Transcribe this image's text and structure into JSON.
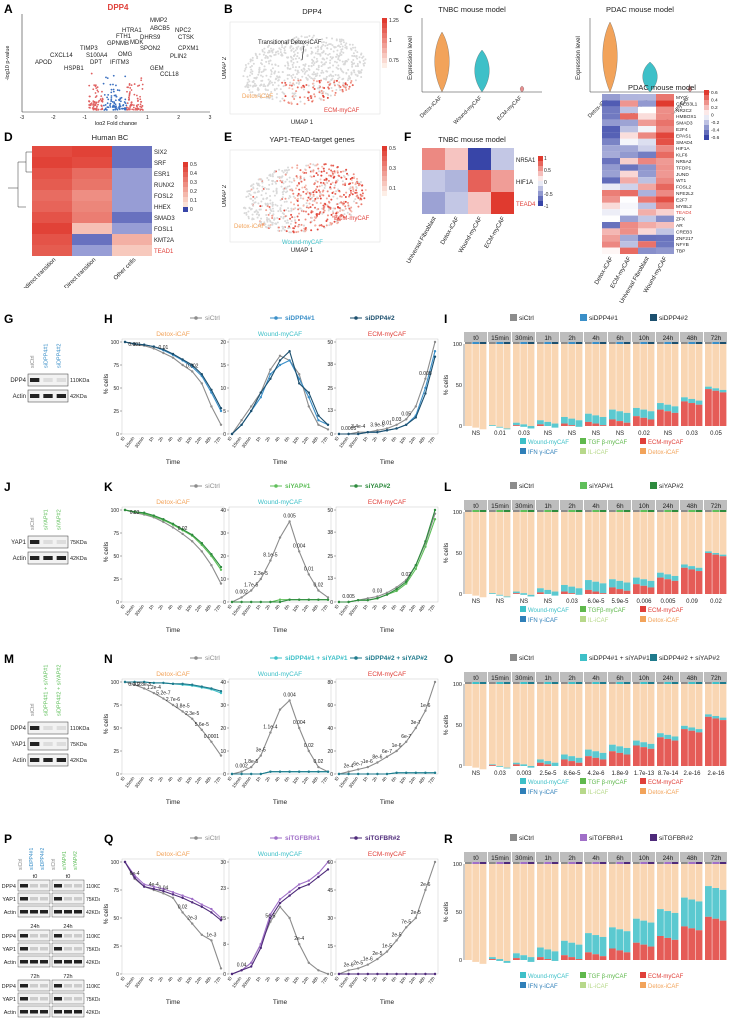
{
  "panel_letters": [
    "A",
    "B",
    "C",
    "D",
    "E",
    "F",
    "G",
    "H",
    "I",
    "J",
    "K",
    "L",
    "M",
    "N",
    "O",
    "P",
    "Q",
    "R"
  ],
  "colors": {
    "detox": "#f2a35a",
    "detox_fill": "#f9d6b3",
    "wound": "#3ec0c8",
    "ecm": "#e0403a",
    "tgfb": "#5fb84c",
    "il": "#b7d88a",
    "ifn": "#2f7fb8",
    "grey": "#8c8c8c",
    "siDPP4_1": "#3a8fc8",
    "siDPP4_2": "#1c4f6e",
    "siYAP1_1": "#5fbf5a",
    "siYAP1_2": "#2e8b3e",
    "siTGF_1": "#a06fc8",
    "siTGF_2": "#4e2a7a",
    "red_label": "#e0403a"
  },
  "A": {
    "title": "DPP4",
    "ylabel": "-log10 p-value",
    "xlabel": "log2 Fold change",
    "xticks": [
      "-3",
      "-2",
      "-1",
      "0",
      "1",
      "2",
      "3"
    ],
    "genes": [
      "MMP2",
      "ABCB5",
      "HTRA1",
      "NPC2",
      "FTH1",
      "DHRS9",
      "CTSK",
      "GPNMB",
      "MDK",
      "TIMP3",
      "SPON2",
      "CPXM1",
      "CXCL14",
      "S100A4",
      "OMG",
      "PLIN2",
      "APOD",
      "DPT",
      "IFITM3",
      "GEM",
      "HSPB1",
      "CCL18"
    ]
  },
  "B": {
    "title": "DPP4",
    "ylabel": "UMAP 2",
    "xlabel": "UMAP 1",
    "label_trans": "Transitional Detox-iCAF",
    "label_detox": "Detox-iCAF",
    "label_ecm": "ECM-myCAF",
    "scale": [
      "1.25",
      "1",
      "0.75"
    ]
  },
  "C": {
    "left_title": "TNBC mouse model",
    "right_title": "PDAC mouse model",
    "ylabel": "Expression level",
    "cats": [
      "Detox-iCAF",
      "Wound-myCAF",
      "ECM-myCAF"
    ]
  },
  "D": {
    "title": "Human BC",
    "rows": [
      "SIX2",
      "SRF",
      "ESR1",
      "RUNX2",
      "FOSL2",
      "HHEX",
      "SMAD3",
      "FOSL1",
      "KMT2A",
      "TEAD1"
    ],
    "cols": [
      "Indirect transition",
      "Direct transition",
      "Other cells"
    ],
    "scale": [
      "0.5",
      "0.4",
      "0.3",
      "0.2",
      "0.1",
      "0"
    ]
  },
  "E": {
    "title": "YAP1-TEAD-target genes",
    "ylabel": "UMAP 2",
    "xlabel": "UMAP 1",
    "label_detox": "Detox-iCAF",
    "label_wound": "Wound-myCAF",
    "label_ecm": "ECM-myCAF",
    "scale": [
      "0.5",
      "0.3",
      "0.1"
    ]
  },
  "F": {
    "left_title": "TNBC mouse model",
    "left_rows": [
      "NR5A1",
      "HIF1A",
      "TEAD4"
    ],
    "left_cols": [
      "Universal Fibroblast",
      "Detox-iCAF",
      "Wound-myCAF",
      "ECM-myCAF"
    ],
    "left_scale": [
      "1",
      "0.5",
      "0",
      "-0.5",
      "-1"
    ],
    "right_title": "PDAC mouse model",
    "right_rows": [
      "MYC",
      "CREB3L1",
      "NR2C2",
      "HMBOX1",
      "SMAD3",
      "E2F4",
      "EPAS1",
      "SMAD4",
      "HIF1A",
      "KLF6",
      "NR5A2",
      "TFDP1",
      "JUND",
      "WT1",
      "FOSL2",
      "NFE2L2",
      "E2F7",
      "MYBL2",
      "TEAD4",
      "ZFX",
      "AR",
      "CREB3",
      "ZNF217",
      "NFYB",
      "TBP"
    ],
    "right_cols": [
      "Detox-iCAF",
      "ECM-myCAF",
      "Universal Fibroblast",
      "Wound-myCAF"
    ],
    "right_scale": [
      "0.6",
      "0.4",
      "0.2",
      "0",
      "-0.2",
      "-0.4",
      "-0.6"
    ]
  },
  "blots": {
    "G": {
      "lanes": [
        "siCtrl",
        "siDPP4#1",
        "siDPP4#2"
      ],
      "rows": [
        "DPP4",
        "Actin"
      ],
      "kda": [
        "110KDa",
        "42KDa"
      ]
    },
    "J": {
      "lanes": [
        "siCtrl",
        "siYAP#1",
        "siYAP#2"
      ],
      "rows": [
        "YAP1",
        "Actin"
      ],
      "kda": [
        "75KDa",
        "42KDa"
      ]
    },
    "M": {
      "lanes": [
        "siCtrl",
        "siDPP4#1 + siYAP#1",
        "siDPP4#2 + siYAP#2"
      ],
      "rows": [
        "DPP4",
        "YAP1",
        "Actin"
      ],
      "kda": [
        "110KDa",
        "75KDa",
        "42KDa"
      ]
    },
    "P": {
      "lanes": [
        "siCtrl",
        "siDPP4#1",
        "siDPP4#2",
        "siCtrl",
        "siYAP#1",
        "siYAP#2"
      ],
      "rows": [
        "DPP4",
        "YAP1",
        "Actin"
      ],
      "kda": [
        "110KDa",
        "75KDa",
        "42KDa"
      ],
      "times": [
        "t0",
        "24h",
        "72h"
      ]
    }
  },
  "timepoints": [
    "t0",
    "15min",
    "30min",
    "1h",
    "2h",
    "4h",
    "6h",
    "10h",
    "24h",
    "48h",
    "72h"
  ],
  "line_ylabel": "% cells",
  "line_xlabel": "Time",
  "subtitles": [
    "Detox-iCAF",
    "Wound-myCAF",
    "ECM-myCAF"
  ],
  "H": {
    "legend": [
      "siCtrl",
      "siDPP4#1",
      "siDPP4#2"
    ],
    "series": [
      {
        "name": "siCtrl",
        "detox": [
          100,
          97,
          96,
          93,
          88,
          83,
          75,
          68,
          55,
          30,
          10
        ],
        "wound": [
          0,
          3,
          6,
          9,
          14,
          17,
          16,
          13,
          6,
          2,
          1
        ],
        "ecm": [
          0,
          0,
          1,
          1,
          2,
          3,
          5,
          8,
          15,
          30,
          50
        ]
      },
      {
        "name": "siDPP4#1",
        "detox": [
          100,
          98,
          97,
          95,
          91,
          86,
          80,
          73,
          63,
          45,
          25
        ],
        "wound": [
          0,
          2,
          5,
          8,
          13,
          15,
          16,
          12,
          8,
          3,
          2
        ],
        "ecm": [
          0,
          0,
          0,
          1,
          1,
          2,
          3,
          5,
          10,
          25,
          45
        ]
      },
      {
        "name": "siDPP4#2",
        "detox": [
          100,
          98,
          97,
          95,
          92,
          87,
          81,
          75,
          65,
          48,
          28
        ],
        "wound": [
          0,
          2,
          5,
          9,
          12,
          16,
          18,
          11,
          9,
          4,
          2
        ],
        "ecm": [
          0,
          0,
          0,
          1,
          1,
          2,
          3,
          5,
          9,
          22,
          42
        ]
      }
    ],
    "pvals_detox": [
      "0.001",
      "0.01",
      "0.002"
    ],
    "pvals_ecm": [
      "0.0005",
      "3.4e-4",
      "3.9e-5",
      "0.01",
      "0.03",
      "0.05",
      "0.008"
    ]
  },
  "I": {
    "legend": [
      "siCtrl",
      "siDPP4#1",
      "siDPP4#2"
    ],
    "pvals": [
      "NS",
      "0.01",
      "0.03",
      "NS",
      "NS",
      "NS",
      "NS",
      "0.02",
      "NS",
      "0.03",
      "0.05"
    ],
    "key": [
      "Wound-myCAF",
      "TGF β-myCAF",
      "ECM-myCAF",
      "IFN γ-iCAF",
      "IL-iCAF",
      "Detox-iCAF"
    ],
    "ecm": [
      0,
      0,
      1,
      2,
      3,
      5,
      8,
      12,
      20,
      30,
      45
    ],
    "wound": [
      0,
      1,
      3,
      5,
      8,
      10,
      12,
      10,
      8,
      5,
      3
    ],
    "detox": [
      95,
      94,
      92,
      88,
      84,
      80,
      74,
      70,
      64,
      60,
      48
    ]
  },
  "K": {
    "legend": [
      "siCtrl",
      "siYAP#1",
      "siYAP#2"
    ],
    "series": [
      {
        "name": "siCtrl",
        "detox": [
          100,
          97,
          95,
          92,
          87,
          81,
          74,
          66,
          55,
          40,
          20
        ],
        "wound": [
          0,
          2,
          5,
          10,
          18,
          28,
          35,
          22,
          12,
          5,
          2
        ],
        "ecm": [
          0,
          0,
          1,
          2,
          3,
          5,
          8,
          12,
          20,
          32,
          48
        ]
      },
      {
        "name": "siYAP#1",
        "detox": [
          100,
          98,
          96,
          93,
          89,
          84,
          78,
          72,
          62,
          50,
          35
        ],
        "wound": [
          0,
          0,
          0,
          0,
          0,
          1,
          1,
          1,
          1,
          1,
          1
        ],
        "ecm": [
          0,
          0,
          1,
          1,
          2,
          4,
          6,
          10,
          18,
          30,
          45
        ]
      },
      {
        "name": "siYAP#2",
        "detox": [
          100,
          98,
          97,
          94,
          90,
          85,
          79,
          73,
          64,
          52,
          38
        ],
        "wound": [
          0,
          0,
          0,
          0,
          0,
          0,
          1,
          1,
          1,
          1,
          1
        ],
        "ecm": [
          0,
          0,
          1,
          1,
          2,
          4,
          7,
          11,
          20,
          33,
          50
        ]
      }
    ],
    "pvals_detox": [
      "0.03",
      "0.02"
    ],
    "pvals_wound": [
      "0.002",
      "1.7e-5",
      "2.3e-5",
      "8.1e-5",
      "0.005",
      "0.004",
      "0.01",
      "0.02"
    ],
    "pvals_ecm": [
      "0.005",
      "0.03",
      "0.02"
    ]
  },
  "L": {
    "legend": [
      "siCtrl",
      "siYAP#1",
      "siYAP#2"
    ],
    "pvals": [
      "NS",
      "NS",
      "NS",
      "NS",
      "0.03",
      "6.0e-5",
      "5.9e-5",
      "0.006",
      "0.005",
      "0.09",
      "0.02"
    ],
    "key": [
      "Wound-myCAF",
      "TGFβ-myCAF",
      "ECM-myCAF",
      "IFN γ-iCAF",
      "IL-iCAF",
      "Detox-iCAF"
    ],
    "ecm": [
      0,
      0,
      1,
      2,
      3,
      5,
      8,
      12,
      20,
      32,
      50
    ],
    "wound": [
      0,
      1,
      2,
      5,
      8,
      12,
      10,
      8,
      6,
      4,
      2
    ],
    "detox": [
      96,
      95,
      93,
      90,
      86,
      82,
      78,
      72,
      66,
      58,
      45
    ]
  },
  "N": {
    "legend": [
      "siCtrl",
      "siDPP4#1 + siYAP#1",
      "siDPP4#2 + siYAP#2"
    ],
    "series": [
      {
        "name": "siCtrl",
        "detox": [
          100,
          97,
          93,
          88,
          82,
          75,
          68,
          60,
          48,
          35,
          20
        ],
        "wound": [
          0,
          1,
          3,
          8,
          18,
          28,
          32,
          20,
          10,
          3,
          1
        ],
        "ecm": [
          0,
          2,
          4,
          6,
          10,
          15,
          20,
          28,
          40,
          55,
          80
        ]
      },
      {
        "name": "siDPP4#1 + siYAP#1",
        "detox": [
          100,
          100,
          100,
          99,
          99,
          98,
          97,
          96,
          94,
          92,
          88
        ],
        "wound": [
          0,
          0,
          0,
          0,
          1,
          1,
          1,
          1,
          1,
          1,
          1
        ],
        "ecm": [
          0,
          0,
          0,
          0,
          0,
          0,
          1,
          1,
          1,
          1,
          1
        ]
      },
      {
        "name": "siDPP4#2 + siYAP#2",
        "detox": [
          100,
          100,
          100,
          99,
          99,
          98,
          98,
          97,
          95,
          93,
          90
        ],
        "wound": [
          0,
          0,
          0,
          0,
          1,
          1,
          1,
          1,
          1,
          1,
          1
        ],
        "ecm": [
          0,
          0,
          0,
          0,
          0,
          0,
          1,
          1,
          1,
          1,
          1
        ]
      }
    ],
    "pvals_detox": [
      "0.002",
      "2.8e-5",
      "1.2e-4",
      "5.2e-7",
      "2.7e-6",
      "3.8e-5",
      "2.3e-5",
      "5.6e-5",
      "0.0001"
    ],
    "pvals_wound": [
      "0.002",
      "1.8e-5",
      "3e-5",
      "1.1e-4",
      "0.004",
      "0.004",
      "0.02",
      "0.02"
    ],
    "pvals_ecm": [
      "2e-4",
      "6e-7",
      "1e-6",
      "8e-6",
      "6e-7",
      "1e-6",
      "6e-7",
      "3e-7",
      "1e-6"
    ]
  },
  "O": {
    "legend": [
      "siCtrl",
      "siDPP4#1 + siYAP#1",
      "siDPP4#2 + siYAP#2"
    ],
    "pvals": [
      "NS",
      "0.03",
      "0.003",
      "2.5e-5",
      "8.6e-5",
      "4.2e-6",
      "1.8e-9",
      "1.7e-13",
      "8.7e-14",
      "2.e-16",
      "2.e-16"
    ],
    "key": [
      "Wound-myCAF",
      "TGF β-myCAF",
      "ECM-myCAF",
      "IFN γ-iCAF",
      "IL-iCAF",
      "Detox-iCAF"
    ],
    "ecm": [
      0,
      1,
      2,
      4,
      8,
      12,
      18,
      25,
      35,
      45,
      60
    ],
    "wound": [
      0,
      1,
      2,
      4,
      6,
      8,
      8,
      6,
      5,
      4,
      3
    ],
    "detox": [
      96,
      95,
      93,
      90,
      84,
      78,
      72,
      66,
      58,
      48,
      35
    ]
  },
  "Q": {
    "legend": [
      "siCtrl",
      "siTGFBR#1",
      "siTGFBR#2"
    ],
    "series": [
      {
        "name": "siCtrl",
        "detox": [
          100,
          85,
          78,
          75,
          72,
          68,
          55,
          45,
          35,
          30,
          5
        ],
        "wound": [
          0,
          1,
          3,
          8,
          14,
          18,
          15,
          8,
          3,
          1,
          0
        ],
        "ecm": [
          0,
          2,
          3,
          5,
          8,
          12,
          18,
          25,
          30,
          45,
          60
        ]
      },
      {
        "name": "siTGFBR#1",
        "detox": [
          100,
          88,
          80,
          78,
          76,
          73,
          70,
          67,
          62,
          58,
          50
        ],
        "wound": [
          0,
          1,
          3,
          8,
          16,
          20,
          22,
          24,
          25,
          27,
          30
        ],
        "ecm": [
          0,
          0,
          0,
          0,
          0,
          0,
          0,
          0,
          0,
          0,
          0
        ]
      },
      {
        "name": "siTGFBR#2",
        "detox": [
          100,
          86,
          78,
          76,
          74,
          71,
          68,
          64,
          60,
          55,
          48
        ],
        "wound": [
          0,
          1,
          2,
          7,
          15,
          19,
          21,
          23,
          24,
          26,
          28
        ],
        "ecm": [
          0,
          0,
          0,
          0,
          0,
          0,
          0,
          0,
          0,
          0,
          0
        ]
      }
    ],
    "pvals_detox": [
      "6e-4",
      "4e-4",
      "0.04",
      "0.02",
      "2e-3",
      "1e-3"
    ],
    "pvals_wound": [
      "0.04",
      "5e-5",
      "2e-4"
    ],
    "pvals_ecm": [
      "2e-6",
      "2e-5",
      "1e-6",
      "2e-5",
      "1e-5",
      "2e-5",
      "7e-5",
      "2e-5",
      "2e-6"
    ]
  },
  "R": {
    "legend": [
      "siCtrl",
      "siTGFBR#1",
      "siTGFBR#2"
    ],
    "key": [
      "Wound-myCAF",
      "TGF β-myCAF",
      "ECM-myCAF",
      "IFN γ-iCAF",
      "IL-iCAF",
      "Detox-iCAF"
    ],
    "ecm": [
      0,
      1,
      2,
      3,
      5,
      8,
      12,
      18,
      25,
      35,
      45
    ],
    "wound": [
      0,
      2,
      5,
      10,
      15,
      20,
      22,
      25,
      28,
      30,
      32
    ],
    "detox": [
      96,
      94,
      90,
      86,
      80,
      74,
      68,
      60,
      52,
      45,
      38
    ]
  }
}
